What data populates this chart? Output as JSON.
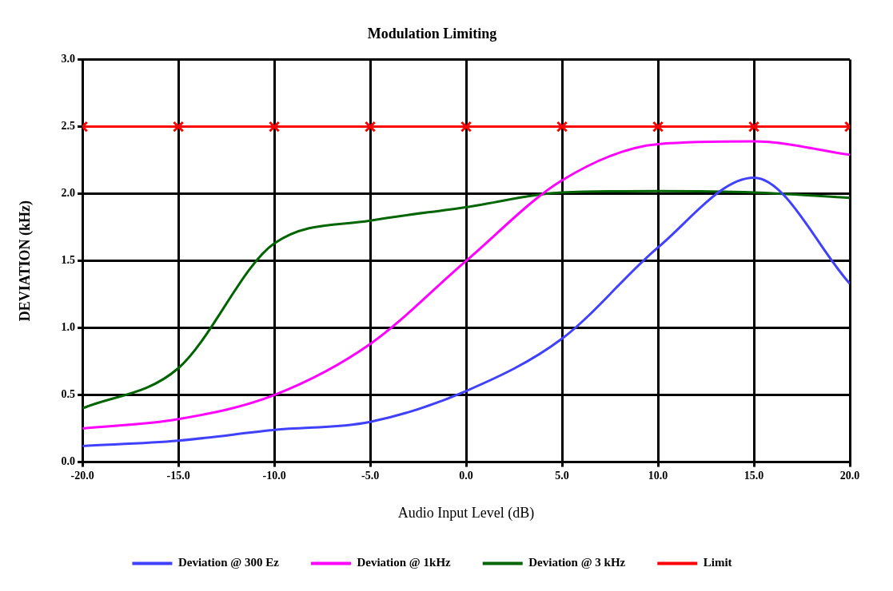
{
  "chart_data": {
    "type": "line",
    "title": "Modulation Limiting",
    "xlabel": "Audio Input Level (dB)",
    "ylabel": "DEVIATION (kHz)",
    "x": [
      -20,
      -15,
      -10,
      -5,
      0,
      5,
      10,
      15,
      20
    ],
    "xlim": [
      -20,
      20
    ],
    "xticks": [
      {
        "value": -20,
        "label": "-20.0"
      },
      {
        "value": -15,
        "label": "-15.0"
      },
      {
        "value": -10,
        "label": "-10.0"
      },
      {
        "value": -5,
        "label": "-5.0"
      },
      {
        "value": 0,
        "label": "0.0"
      },
      {
        "value": 5,
        "label": "5.0"
      },
      {
        "value": 10,
        "label": "10.0"
      },
      {
        "value": 15,
        "label": "15.0"
      },
      {
        "value": 20,
        "label": "20.0"
      }
    ],
    "ylim": [
      0,
      3
    ],
    "yticks": [
      {
        "value": 0,
        "label": "0.0"
      },
      {
        "value": 0.5,
        "label": "0.5"
      },
      {
        "value": 1,
        "label": "1.0"
      },
      {
        "value": 1.5,
        "label": "1.5"
      },
      {
        "value": 2,
        "label": "2.0"
      },
      {
        "value": 2.5,
        "label": "2.5"
      },
      {
        "value": 3,
        "label": "3.0"
      }
    ],
    "grid": true,
    "legend": "bottom",
    "series": [
      {
        "name": "Deviation @ 300 Ez",
        "color": "#4040ff",
        "marker": "none",
        "values": [
          0.12,
          0.16,
          0.24,
          0.3,
          0.53,
          0.92,
          1.6,
          2.12,
          1.33
        ]
      },
      {
        "name": "Deviation @ 1kHz",
        "color": "#ff00ff",
        "marker": "none",
        "values": [
          0.25,
          0.32,
          0.5,
          0.88,
          1.5,
          2.1,
          2.37,
          2.39,
          2.29
        ]
      },
      {
        "name": "Deviation @ 3 kHz",
        "color": "#006400",
        "marker": "none",
        "values": [
          0.4,
          0.7,
          1.63,
          1.8,
          1.9,
          2.01,
          2.02,
          2.01,
          1.97
        ]
      },
      {
        "name": "Limit",
        "color": "#ff0000",
        "marker": "cross",
        "values": [
          2.5,
          2.5,
          2.5,
          2.5,
          2.5,
          2.5,
          2.5,
          2.5,
          2.5
        ]
      }
    ]
  }
}
